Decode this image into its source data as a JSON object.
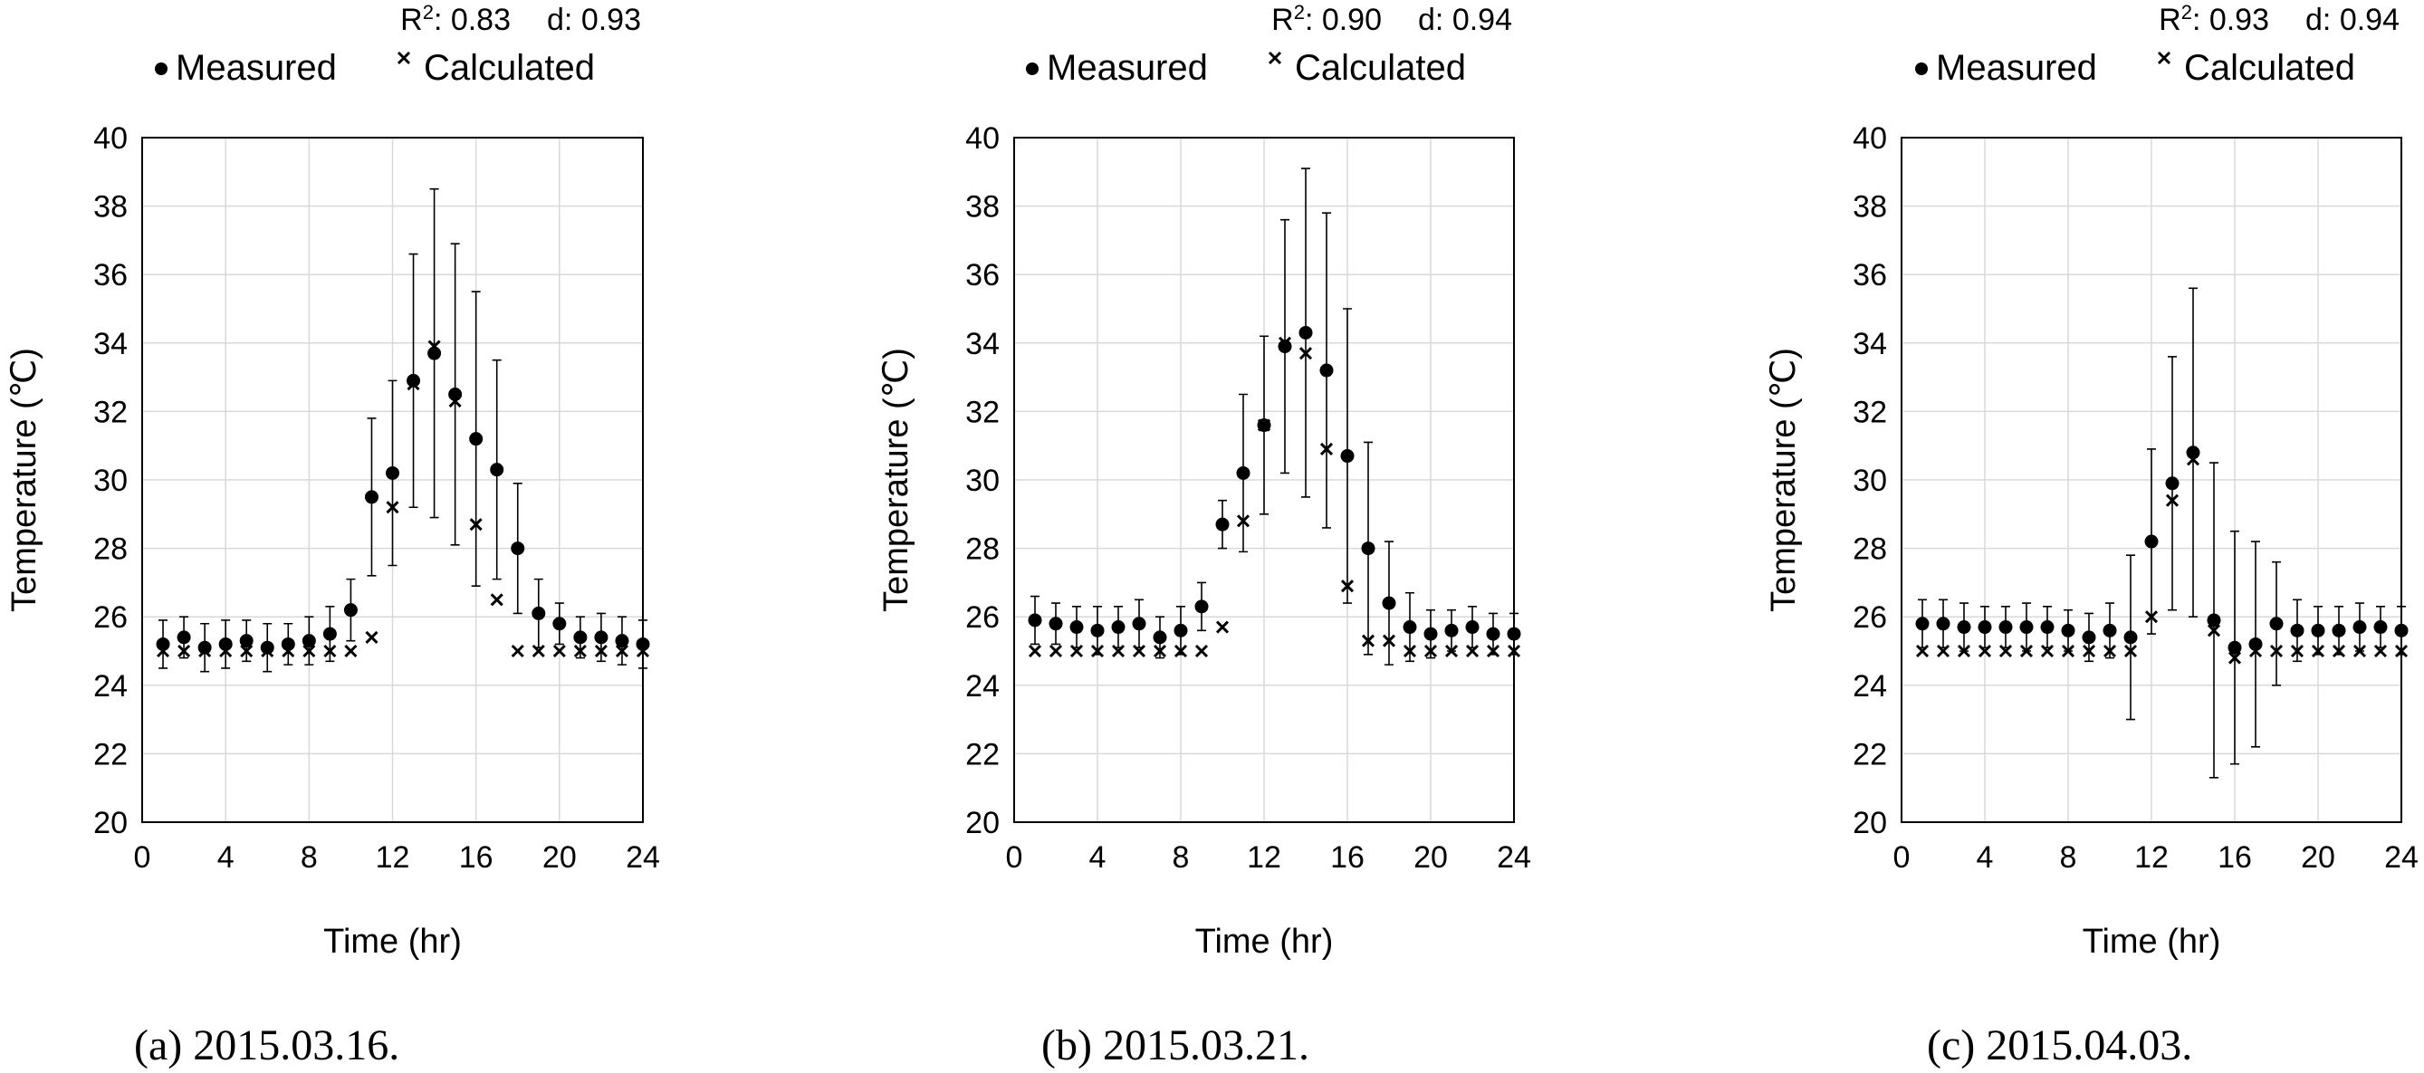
{
  "chart_data": [
    {
      "type": "scatter",
      "stats": {
        "r2_label": "R",
        "r2_sup": "2",
        "r2_value": ": 0.83",
        "d_text": "d: 0.93"
      },
      "caption": "(a)  2015.03.16.",
      "xlabel": "Time  (hr)",
      "ylabel": "Temperature  (℃)",
      "xlim": [
        0,
        24
      ],
      "ylim": [
        20,
        40
      ],
      "xticks": [
        0,
        4,
        8,
        12,
        16,
        20,
        24
      ],
      "yticks": [
        20,
        22,
        24,
        26,
        28,
        30,
        32,
        34,
        36,
        38,
        40
      ],
      "grid": true,
      "legend_position": "top",
      "series": [
        {
          "name": "Measured",
          "marker": "circle",
          "x": [
            1,
            2,
            3,
            4,
            5,
            6,
            7,
            8,
            9,
            10,
            11,
            12,
            13,
            14,
            15,
            16,
            17,
            18,
            19,
            20,
            21,
            22,
            23,
            24
          ],
          "y": [
            25.2,
            25.4,
            25.1,
            25.2,
            25.3,
            25.1,
            25.2,
            25.3,
            25.5,
            26.2,
            29.5,
            30.2,
            32.9,
            33.7,
            32.5,
            31.2,
            30.3,
            28.0,
            26.1,
            25.8,
            25.4,
            25.4,
            25.3,
            25.2
          ],
          "error": [
            0.7,
            0.6,
            0.7,
            0.7,
            0.6,
            0.7,
            0.6,
            0.7,
            0.8,
            0.9,
            2.3,
            2.7,
            3.7,
            4.8,
            4.4,
            4.3,
            3.2,
            1.9,
            1.0,
            0.6,
            0.6,
            0.7,
            0.7,
            0.7
          ]
        },
        {
          "name": "Calculated",
          "marker": "x",
          "x": [
            1,
            2,
            3,
            4,
            5,
            6,
            7,
            8,
            9,
            10,
            11,
            12,
            13,
            14,
            15,
            16,
            17,
            18,
            19,
            20,
            21,
            22,
            23,
            24
          ],
          "y": [
            25.0,
            25.0,
            25.0,
            25.0,
            25.0,
            25.0,
            25.0,
            25.0,
            25.0,
            25.0,
            25.4,
            29.2,
            32.8,
            33.9,
            32.3,
            28.7,
            26.5,
            25.0,
            25.0,
            25.0,
            25.0,
            25.0,
            25.0,
            25.0
          ]
        }
      ]
    },
    {
      "type": "scatter",
      "stats": {
        "r2_label": "R",
        "r2_sup": "2",
        "r2_value": ": 0.90",
        "d_text": "d: 0.94"
      },
      "caption": "(b)  2015.03.21.",
      "xlabel": "Time  (hr)",
      "ylabel": "Temperature  (℃)",
      "xlim": [
        0,
        24
      ],
      "ylim": [
        20,
        40
      ],
      "xticks": [
        0,
        4,
        8,
        12,
        16,
        20,
        24
      ],
      "yticks": [
        20,
        22,
        24,
        26,
        28,
        30,
        32,
        34,
        36,
        38,
        40
      ],
      "grid": true,
      "legend_position": "top",
      "series": [
        {
          "name": "Measured",
          "marker": "circle",
          "x": [
            1,
            2,
            3,
            4,
            5,
            6,
            7,
            8,
            9,
            10,
            11,
            12,
            13,
            14,
            15,
            16,
            17,
            18,
            19,
            20,
            21,
            22,
            23,
            24
          ],
          "y": [
            25.9,
            25.8,
            25.7,
            25.6,
            25.7,
            25.8,
            25.4,
            25.6,
            26.3,
            28.7,
            30.2,
            31.6,
            33.9,
            34.3,
            33.2,
            30.7,
            28.0,
            26.4,
            25.7,
            25.5,
            25.6,
            25.7,
            25.5,
            25.5
          ],
          "error": [
            0.7,
            0.6,
            0.6,
            0.7,
            0.6,
            0.7,
            0.6,
            0.7,
            0.7,
            0.7,
            2.3,
            2.6,
            3.7,
            4.8,
            4.6,
            4.3,
            3.1,
            1.8,
            1.0,
            0.7,
            0.6,
            0.6,
            0.6,
            0.6
          ]
        },
        {
          "name": "Calculated",
          "marker": "x",
          "x": [
            1,
            2,
            3,
            4,
            5,
            6,
            7,
            8,
            9,
            10,
            11,
            12,
            13,
            14,
            15,
            16,
            17,
            18,
            19,
            20,
            21,
            22,
            23,
            24
          ],
          "y": [
            25.0,
            25.0,
            25.0,
            25.0,
            25.0,
            25.0,
            25.0,
            25.0,
            25.0,
            25.7,
            28.8,
            31.6,
            34.0,
            33.7,
            30.9,
            26.9,
            25.3,
            25.3,
            25.0,
            25.0,
            25.0,
            25.0,
            25.0,
            25.0
          ]
        }
      ]
    },
    {
      "type": "scatter",
      "stats": {
        "r2_label": "R",
        "r2_sup": "2",
        "r2_value": ": 0.93",
        "d_text": "d: 0.94"
      },
      "caption": "(c)  2015.04.03.",
      "xlabel": "Time  (hr)",
      "ylabel": "Temperature  (℃)",
      "xlim": [
        0,
        24
      ],
      "ylim": [
        20,
        40
      ],
      "xticks": [
        0,
        4,
        8,
        12,
        16,
        20,
        24
      ],
      "yticks": [
        20,
        22,
        24,
        26,
        28,
        30,
        32,
        34,
        36,
        38,
        40
      ],
      "grid": true,
      "legend_position": "top",
      "series": [
        {
          "name": "Measured",
          "marker": "circle",
          "x": [
            1,
            2,
            3,
            4,
            5,
            6,
            7,
            8,
            9,
            10,
            11,
            12,
            13,
            14,
            15,
            16,
            17,
            18,
            19,
            20,
            21,
            22,
            23,
            24
          ],
          "y": [
            25.8,
            25.8,
            25.7,
            25.7,
            25.7,
            25.7,
            25.7,
            25.6,
            25.4,
            25.6,
            25.4,
            28.2,
            29.9,
            30.8,
            25.9,
            25.1,
            25.2,
            25.8,
            25.6,
            25.6,
            25.6,
            25.7,
            25.7,
            25.6
          ],
          "error": [
            0.7,
            0.7,
            0.7,
            0.6,
            0.6,
            0.7,
            0.6,
            0.6,
            0.7,
            0.8,
            2.4,
            2.7,
            3.7,
            4.8,
            4.6,
            3.4,
            3.0,
            1.8,
            0.9,
            0.7,
            0.7,
            0.7,
            0.6,
            0.7
          ]
        },
        {
          "name": "Calculated",
          "marker": "x",
          "x": [
            1,
            2,
            3,
            4,
            5,
            6,
            7,
            8,
            9,
            10,
            11,
            12,
            13,
            14,
            15,
            16,
            17,
            18,
            19,
            20,
            21,
            22,
            23,
            24
          ],
          "y": [
            25.0,
            25.0,
            25.0,
            25.0,
            25.0,
            25.0,
            25.0,
            25.0,
            25.0,
            25.0,
            25.0,
            26.0,
            29.4,
            30.6,
            25.6,
            24.8,
            25.0,
            25.0,
            25.0,
            25.0,
            25.0,
            25.0,
            25.0,
            25.0
          ]
        }
      ]
    }
  ],
  "style": {
    "axis_color": "#000000",
    "grid_color": "#d9d9d9",
    "marker_color": "#000000"
  }
}
